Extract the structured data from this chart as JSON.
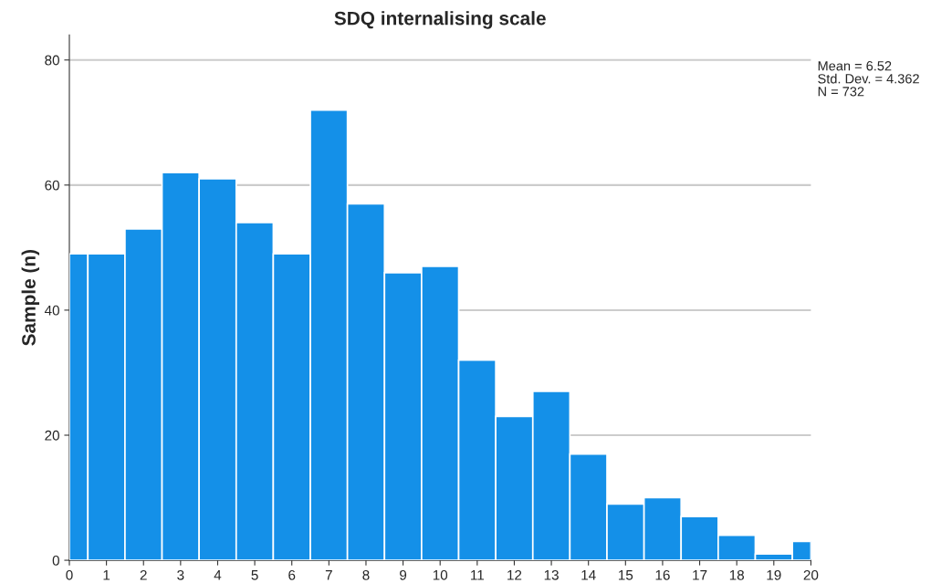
{
  "chart_data": {
    "type": "histogram",
    "title": "SDQ internalising scale",
    "ylabel": "Sample (n)",
    "bins": [
      0,
      0.5,
      1.5,
      2.5,
      3.5,
      4.5,
      5.5,
      6.5,
      7.5,
      8.5,
      9.5,
      10.5,
      11.5,
      12.5,
      13.5,
      14.5,
      15.5,
      16.5,
      17.5,
      18.5,
      19.5,
      20
    ],
    "values": [
      49,
      49,
      53,
      62,
      61,
      54,
      49,
      72,
      57,
      46,
      47,
      32,
      23,
      27,
      17,
      9,
      10,
      7,
      4,
      1,
      3
    ],
    "color": "#1490e8",
    "xlim": [
      0,
      20
    ],
    "xticks": [
      0,
      1,
      2,
      3,
      4,
      5,
      6,
      7,
      8,
      9,
      10,
      11,
      12,
      13,
      14,
      15,
      16,
      17,
      18,
      19,
      20
    ],
    "ylim": [
      0,
      84
    ],
    "yticks": [
      0,
      20,
      40,
      60,
      80
    ],
    "grid": "y",
    "annotations": [
      "Mean = 6.52",
      "Std. Dev. = 4.362",
      "N = 732"
    ]
  }
}
